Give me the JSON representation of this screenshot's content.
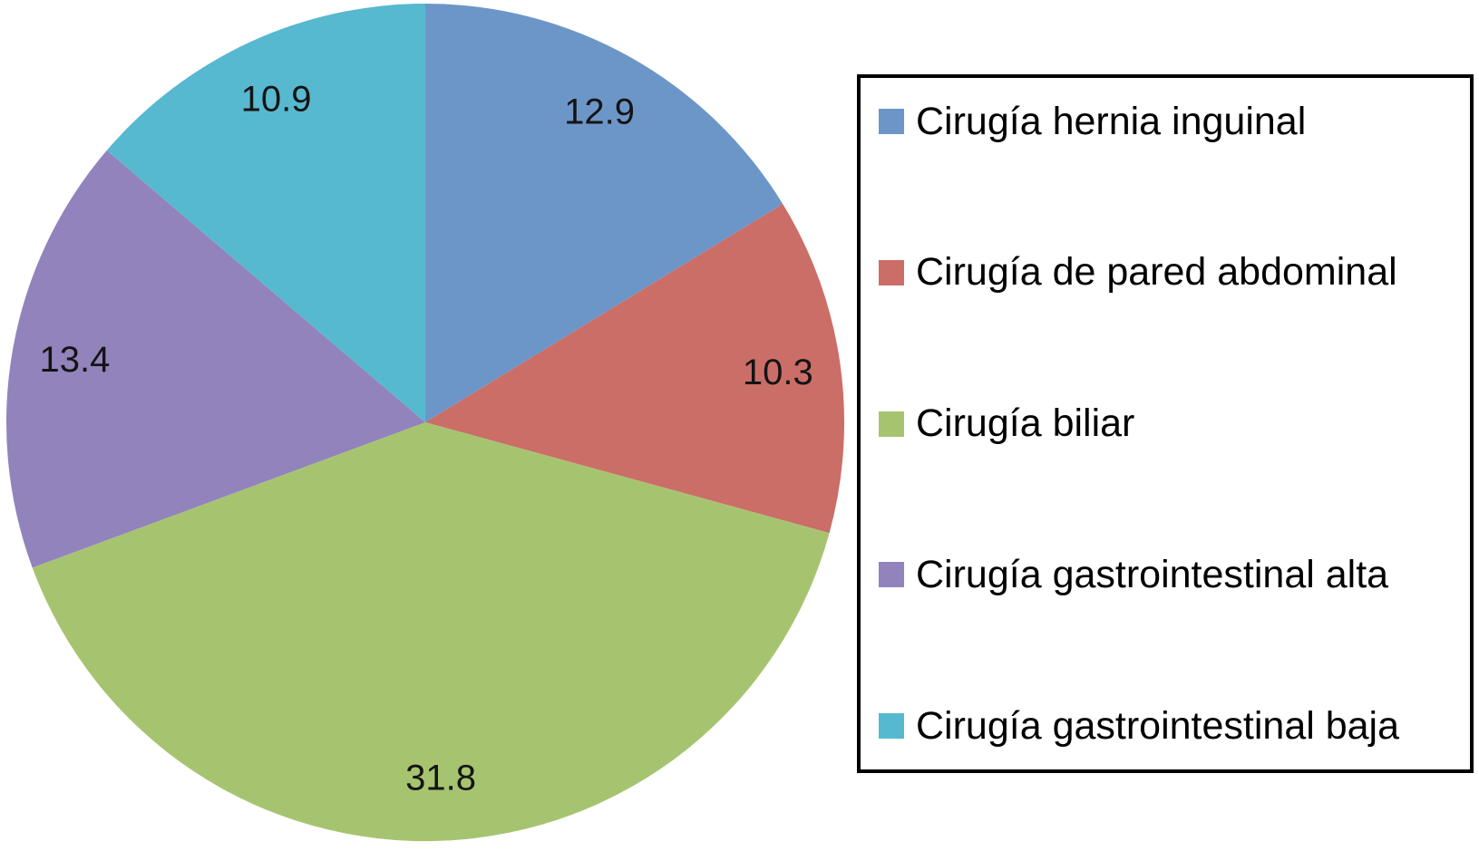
{
  "page": {
    "background": "#ffffff"
  },
  "chart_data": {
    "type": "pie",
    "title": "",
    "categories": [
      "Cirugía hernia inguinal",
      "Cirugía de pared abdominal",
      "Cirugía biliar",
      "Cirugía gastrointestinal alta",
      "Cirugía gastrointestinal baja"
    ],
    "values": [
      12.9,
      10.3,
      31.8,
      13.4,
      10.9
    ],
    "data_labels": [
      "12.9",
      "10.3",
      "31.8",
      "13.4",
      "10.9"
    ],
    "colors": [
      "#6d96c8",
      "#cb6e67",
      "#a6c470",
      "#9283bc",
      "#56b9d0"
    ],
    "start_angle_deg": 0,
    "direction": "clockwise",
    "legend_position": "right",
    "legend_border_color": "#000000",
    "data_label_color": "#141414",
    "legend_text_color": "#000000"
  }
}
